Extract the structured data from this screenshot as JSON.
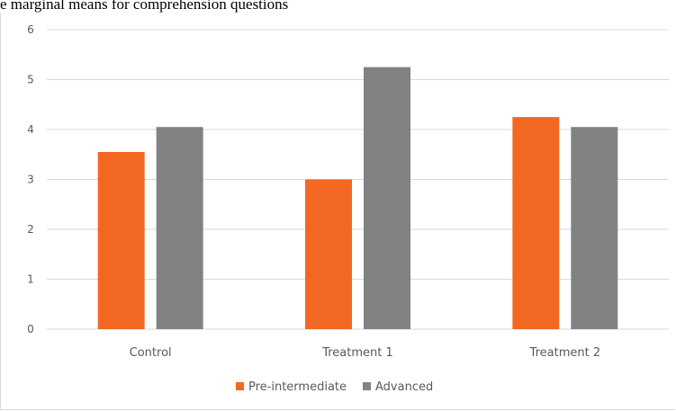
{
  "chart_data": {
    "type": "bar",
    "title": "e marginal means for comprehension questions",
    "categories": [
      "Control",
      "Treatment 1",
      "Treatment 2"
    ],
    "series": [
      {
        "name": "Pre-intermediate",
        "color": "#f26822",
        "values": [
          3.55,
          3.0,
          4.25
        ]
      },
      {
        "name": "Advanced",
        "color": "#828285",
        "values": [
          4.05,
          5.25,
          4.05
        ]
      }
    ],
    "yticks": [
      "0",
      "1",
      "2",
      "3",
      "4",
      "5",
      "6"
    ],
    "ylim": [
      0,
      6
    ],
    "grid": true,
    "legend_position": "bottom",
    "colors": {
      "grid": "#d9d9d9",
      "text": "#595959"
    }
  }
}
